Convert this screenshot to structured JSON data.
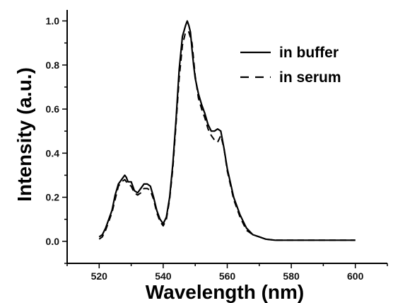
{
  "chart_data": {
    "type": "line",
    "xlabel": "Wavelength (nm)",
    "ylabel": "Intensity (a.u.)",
    "xlim": [
      510,
      610
    ],
    "ylim": [
      -0.1,
      1.05
    ],
    "x_ticks": [
      "520",
      "540",
      "560",
      "580",
      "600"
    ],
    "y_ticks": [
      "0.0",
      "0.2",
      "0.4",
      "0.6",
      "0.8",
      "1.0"
    ],
    "grid": false,
    "legend_position": "top-right",
    "series": [
      {
        "name": "in buffer",
        "style": "solid",
        "color": "#000000",
        "x": [
          520,
          521,
          522,
          523,
          524,
          525,
          526,
          527,
          528,
          528.5,
          529,
          530,
          531,
          532,
          533,
          534,
          535,
          536,
          537,
          538,
          539,
          540,
          541,
          542,
          543,
          544,
          545,
          546,
          547,
          547.5,
          548,
          548.5,
          549,
          549.5,
          550,
          551,
          552,
          553,
          554,
          555,
          556,
          557,
          558,
          559,
          560,
          562,
          564,
          566,
          568,
          570,
          572,
          575,
          580,
          590,
          600
        ],
        "y": [
          0.02,
          0.03,
          0.06,
          0.1,
          0.14,
          0.21,
          0.26,
          0.28,
          0.3,
          0.29,
          0.27,
          0.27,
          0.23,
          0.22,
          0.24,
          0.26,
          0.26,
          0.25,
          0.2,
          0.14,
          0.1,
          0.08,
          0.11,
          0.2,
          0.35,
          0.55,
          0.78,
          0.93,
          0.98,
          1.0,
          0.98,
          0.95,
          0.87,
          0.8,
          0.74,
          0.67,
          0.62,
          0.58,
          0.53,
          0.5,
          0.5,
          0.51,
          0.5,
          0.42,
          0.33,
          0.2,
          0.12,
          0.06,
          0.03,
          0.02,
          0.01,
          0.005,
          0.005,
          0.005,
          0.005
        ]
      },
      {
        "name": "in serum",
        "style": "dashed",
        "color": "#000000",
        "x": [
          520,
          521,
          522,
          523,
          524,
          525,
          526,
          527,
          528,
          529,
          530,
          531,
          532,
          533,
          534,
          535,
          536,
          537,
          538,
          539,
          540,
          541,
          542,
          543,
          544,
          545,
          546,
          547,
          548,
          549,
          550,
          551,
          552,
          553,
          554,
          555,
          556,
          557,
          558,
          559,
          560,
          562,
          564,
          566,
          568,
          570,
          572,
          575,
          580,
          590,
          600
        ],
        "y": [
          0.01,
          0.02,
          0.05,
          0.09,
          0.13,
          0.19,
          0.25,
          0.27,
          0.28,
          0.26,
          0.25,
          0.22,
          0.21,
          0.22,
          0.24,
          0.24,
          0.23,
          0.19,
          0.13,
          0.09,
          0.07,
          0.1,
          0.19,
          0.33,
          0.53,
          0.74,
          0.89,
          0.95,
          0.95,
          0.9,
          0.75,
          0.65,
          0.6,
          0.56,
          0.51,
          0.48,
          0.46,
          0.45,
          0.48,
          0.42,
          0.32,
          0.19,
          0.11,
          0.05,
          0.03,
          0.02,
          0.01,
          0.005,
          0.005,
          0.005,
          0.005
        ]
      }
    ]
  }
}
